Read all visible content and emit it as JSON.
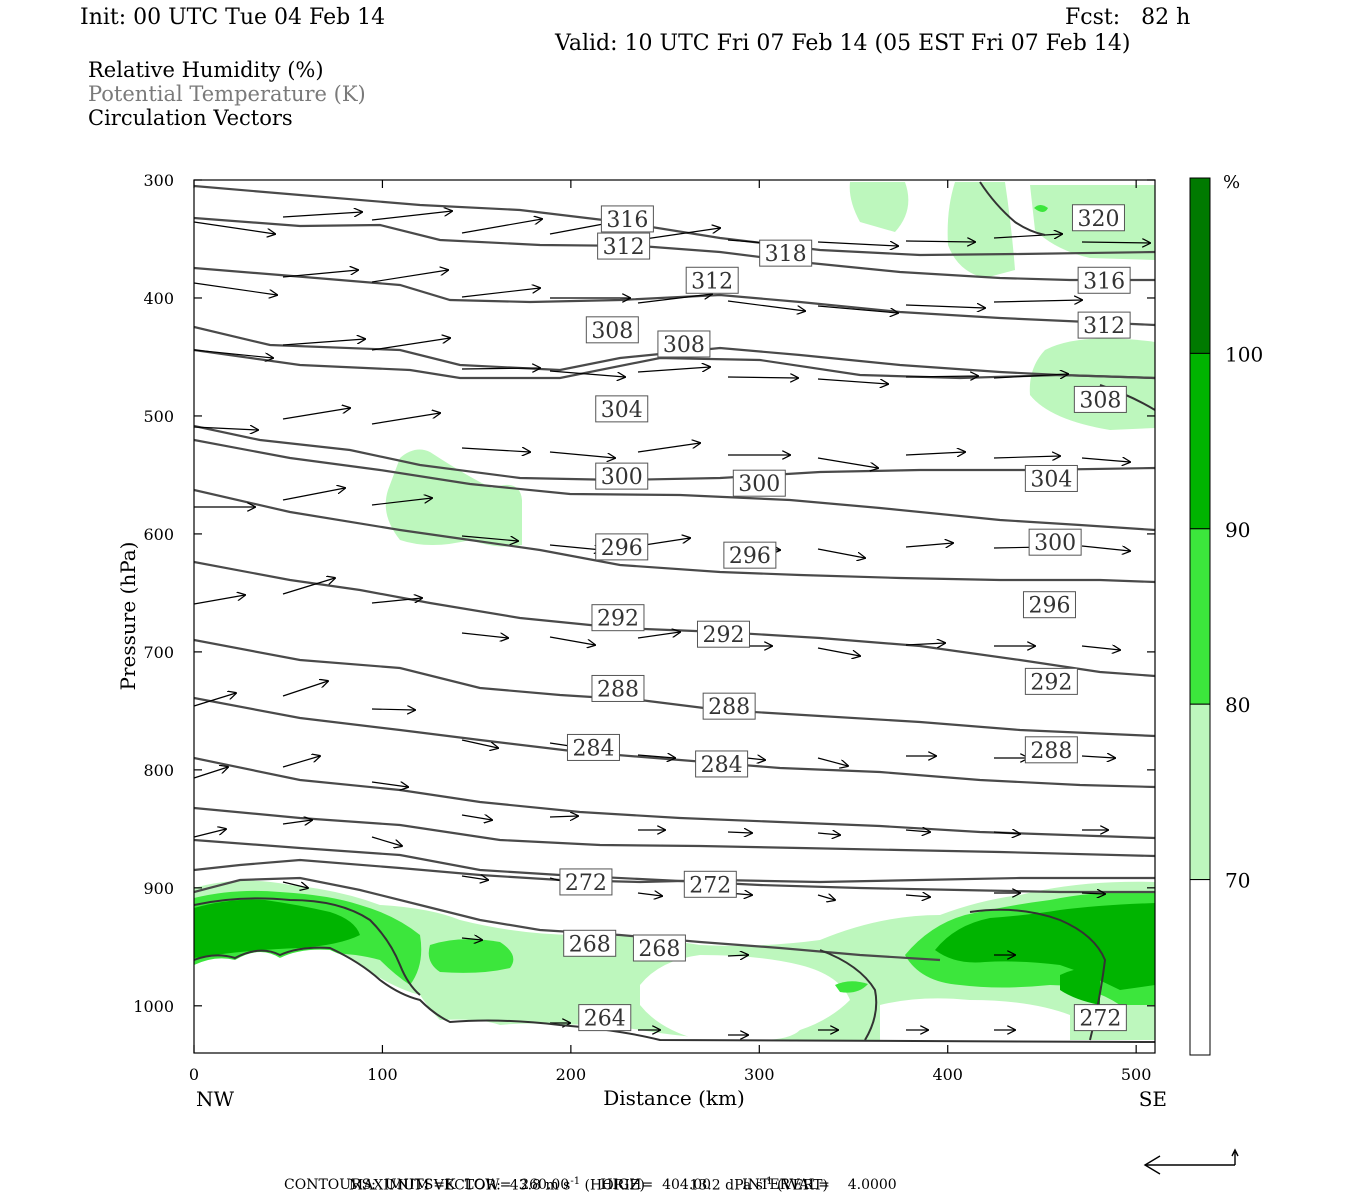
{
  "header": {
    "init": "Init: 00 UTC Tue 04 Feb 14",
    "fcst": "Fcst:   82 h",
    "valid": "Valid: 10 UTC Fri 07 Feb 14 (05 EST Fri 07 Feb 14)"
  },
  "legend": {
    "rh": "Relative Humidity (%)",
    "theta": "Potential Temperature (K)",
    "vectors": "Circulation Vectors",
    "theta_color": "#7a7a7a"
  },
  "footer": {
    "max_vector_label": "MAXIMUM VECTOR:",
    "max_vector_horiz": "43.8 m s",
    "horiz_tag": "(HORIZ)",
    "max_vector_vert": "13.2 dPa s",
    "vert_tag": "(VERT)",
    "superscript": "-1",
    "contours": "CONTOURS:  UNITS=K  LOW=  260.00       HIGH=  404.00       INTERVAL=    4.0000"
  },
  "chart_data": {
    "type": "cross-section",
    "xlabel": "Distance (km)",
    "ylabel": "Pressure (hPa)",
    "xlim": [
      0,
      510
    ],
    "ylim": [
      1040,
      300
    ],
    "x_ticks": [
      0,
      100,
      200,
      300,
      400,
      500
    ],
    "x_tick_labels": [
      "0",
      "100",
      "200",
      "300",
      "400",
      "500"
    ],
    "y_ticks": [
      300,
      400,
      500,
      600,
      700,
      800,
      900,
      1000
    ],
    "y_tick_labels": [
      "300",
      "400",
      "500",
      "600",
      "700",
      "800",
      "900",
      "1000"
    ],
    "left_end": "NW",
    "right_end": "SE",
    "colorbar": {
      "unit": "%",
      "levels": [
        70,
        80,
        90,
        100
      ],
      "level_labels": [
        "70",
        "80",
        "90",
        "100"
      ],
      "colors": [
        "#ffffff",
        "#bdf7bd",
        "#3ce63c",
        "#00b400",
        "#007a00"
      ]
    },
    "theta_labels": [
      {
        "text": "316",
        "x": 230,
        "p": 333
      },
      {
        "text": "318",
        "x": 314,
        "p": 362
      },
      {
        "text": "320",
        "x": 480,
        "p": 332
      },
      {
        "text": "312",
        "x": 228,
        "p": 356
      },
      {
        "text": "312",
        "x": 275,
        "p": 385
      },
      {
        "text": "316",
        "x": 483,
        "p": 385
      },
      {
        "text": "308",
        "x": 222,
        "p": 427
      },
      {
        "text": "308",
        "x": 260,
        "p": 439
      },
      {
        "text": "312",
        "x": 483,
        "p": 423
      },
      {
        "text": "304",
        "x": 227,
        "p": 494
      },
      {
        "text": "308",
        "x": 481,
        "p": 486
      },
      {
        "text": "300",
        "x": 227,
        "p": 551
      },
      {
        "text": "300",
        "x": 300,
        "p": 557
      },
      {
        "text": "304",
        "x": 455,
        "p": 553
      },
      {
        "text": "296",
        "x": 227,
        "p": 611
      },
      {
        "text": "296",
        "x": 295,
        "p": 618
      },
      {
        "text": "300",
        "x": 457,
        "p": 607
      },
      {
        "text": "292",
        "x": 225,
        "p": 671
      },
      {
        "text": "292",
        "x": 281,
        "p": 685
      },
      {
        "text": "296",
        "x": 454,
        "p": 660
      },
      {
        "text": "288",
        "x": 225,
        "p": 731
      },
      {
        "text": "288",
        "x": 284,
        "p": 746
      },
      {
        "text": "292",
        "x": 455,
        "p": 725
      },
      {
        "text": "284",
        "x": 212,
        "p": 781
      },
      {
        "text": "284",
        "x": 280,
        "p": 795
      },
      {
        "text": "288",
        "x": 455,
        "p": 783
      },
      {
        "text": "272",
        "x": 208,
        "p": 895
      },
      {
        "text": "272",
        "x": 274,
        "p": 897
      },
      {
        "text": "268",
        "x": 210,
        "p": 947
      },
      {
        "text": "268",
        "x": 247,
        "p": 951
      },
      {
        "text": "264",
        "x": 218,
        "p": 1010
      },
      {
        "text": "272",
        "x": 481,
        "p": 1010
      }
    ]
  }
}
